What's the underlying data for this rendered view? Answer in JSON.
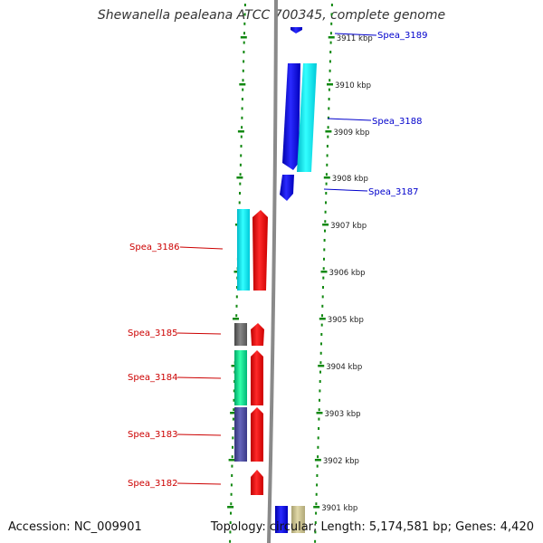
{
  "title": "Shewanella pealeana ATCC 700345, complete genome",
  "footer": {
    "accession": "Accession: NC_009901",
    "topology": "Topology: circular; Length: 5,174,581 bp; Genes: 4,420"
  },
  "colors": {
    "forward_gene": "#1a1aee",
    "forward_gene_alt": "#00e5ee",
    "reverse_gene": "#ee0000",
    "reverse_gene_alt1": "#00d98a",
    "reverse_gene_alt2": "#4a4a99",
    "reverse_gene_alt3": "#666666",
    "forward_label": "#0000cc",
    "reverse_label": "#cc0000",
    "tick": "#118811",
    "backbone": "#888888"
  },
  "scale_labels": [
    "3911 kbp",
    "3910 kbp",
    "3909 kbp",
    "3908 kbp",
    "3907 kbp",
    "3906 kbp",
    "3905 kbp",
    "3904 kbp",
    "3903 kbp",
    "3902 kbp",
    "3901 kbp"
  ],
  "labels": {
    "forward": [
      "Spea_3189",
      "Spea_3188",
      "Spea_3187"
    ],
    "reverse": [
      "Spea_3186",
      "Spea_3185",
      "Spea_3184",
      "Spea_3183",
      "Spea_3182"
    ]
  }
}
